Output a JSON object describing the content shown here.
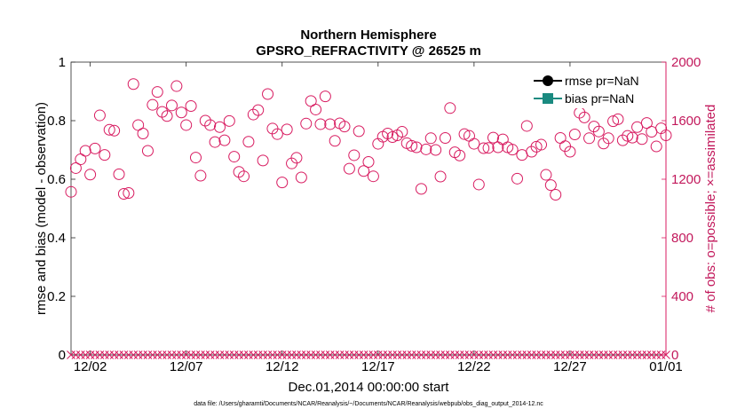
{
  "chart_data": {
    "type": "scatter",
    "title": "Northern Hemisphere",
    "subtitle": "GPSRO_REFRACTIVITY @ 26525 m",
    "xlabel": "Dec.01,2014 00:00:00 start",
    "ylabel_left": "rmse and bias (model - observation)",
    "ylabel_right": "# of obs: o=possible; ×=assimilated",
    "footnote": "data file: /Users/gharamti/Documents/NCAR/Reanalysis/~/Documents/NCAR/Reanalysis/webpub/obs_diag_output_2014-12.nc",
    "xlim": [
      0,
      31
    ],
    "ylim_left": [
      0,
      1
    ],
    "ylim_right": [
      0,
      2000
    ],
    "x_ticks": [
      1,
      6,
      11,
      16,
      21,
      26,
      31
    ],
    "x_tick_labels": [
      "12/02",
      "12/07",
      "12/12",
      "12/17",
      "12/22",
      "12/27",
      "01/01"
    ],
    "y_left_ticks": [
      "0",
      "0.2",
      "0.4",
      "0.6",
      "0.8",
      "1"
    ],
    "y_right_ticks": [
      "0",
      "400",
      "800",
      "1200",
      "1600",
      "2000"
    ],
    "legend": [
      {
        "name": "rmse pr=NaN",
        "color": "#000000",
        "marker": "circle-filled"
      },
      {
        "name": "bias pr=NaN",
        "color": "#1a8a80",
        "marker": "square-filled"
      }
    ],
    "series": [
      {
        "name": "possible",
        "marker": "circle-open",
        "color": "#d81b60",
        "x_start": 0,
        "x_step": 0.25,
        "values": [
          1114,
          1276,
          1336,
          1394,
          1232,
          1410,
          1636,
          1366,
          1538,
          1532,
          1234,
          1100,
          1106,
          1850,
          1570,
          1512,
          1394,
          1708,
          1796,
          1660,
          1632,
          1704,
          1836,
          1656,
          1570,
          1700,
          1348,
          1224,
          1600,
          1570,
          1454,
          1556,
          1466,
          1598,
          1354,
          1250,
          1220,
          1456,
          1642,
          1672,
          1328,
          1782,
          1546,
          1508,
          1178,
          1540,
          1308,
          1346,
          1212,
          1580,
          1734,
          1676,
          1576,
          1766,
          1576,
          1462,
          1582,
          1560,
          1272,
          1364,
          1528,
          1256,
          1318,
          1220,
          1442,
          1490,
          1512,
          1488,
          1500,
          1524,
          1446,
          1428,
          1418,
          1134,
          1404,
          1480,
          1400,
          1218,
          1482,
          1686,
          1384,
          1362,
          1508,
          1496,
          1442,
          1164,
          1412,
          1414,
          1484,
          1418,
          1472,
          1418,
          1402,
          1204,
          1366,
          1564,
          1388,
          1422,
          1436,
          1230,
          1160,
          1094,
          1482,
          1426,
          1388,
          1506,
          1654,
          1622,
          1480,
          1560,
          1526,
          1444,
          1480,
          1596,
          1610,
          1466,
          1496,
          1484,
          1556,
          1474,
          1584,
          1524,
          1424,
          1548,
          1500
        ]
      },
      {
        "name": "assimilated",
        "marker": "x",
        "color": "#d81b60",
        "x_start": 0,
        "x_step": 0.25,
        "value": 0,
        "count": 125
      }
    ]
  }
}
